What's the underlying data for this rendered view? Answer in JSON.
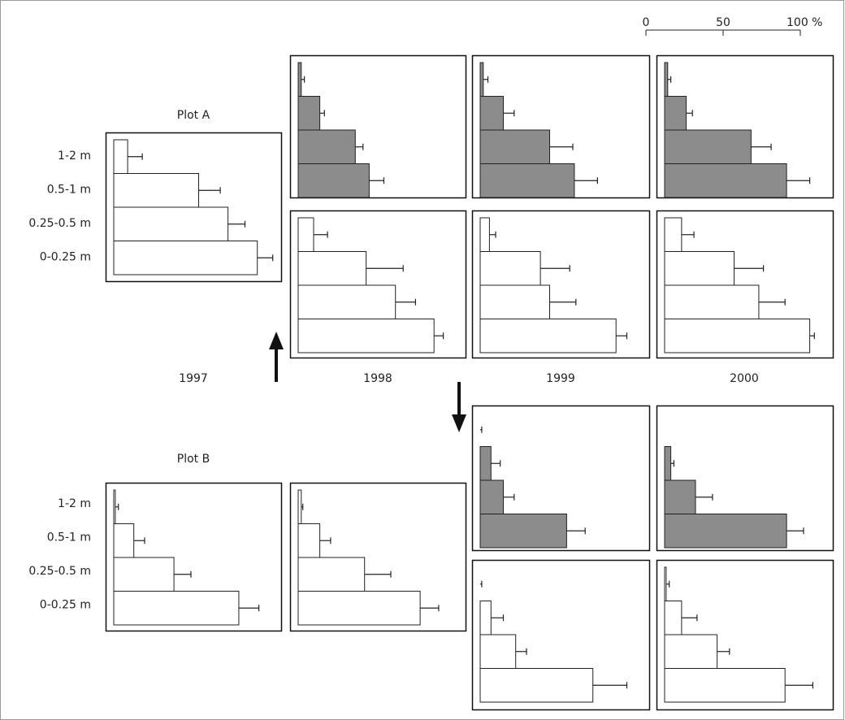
{
  "scale": {
    "xlim": [
      0,
      100
    ],
    "xticks": [
      0,
      50,
      {
        "value": 100,
        "label": "100 %"
      }
    ]
  },
  "categories": [
    "1-2 m",
    "0.5-1 m",
    "0.25-0.5 m",
    "0-0.25 m"
  ],
  "plots": [
    "Plot A",
    "Plot B"
  ],
  "years": [
    "1997",
    "1998",
    "1999",
    "2000"
  ],
  "chart_data": [
    {
      "type": "bar",
      "color": "#ffffff",
      "values": [
        9,
        55,
        74,
        93
      ],
      "errors": [
        9.5,
        14,
        11,
        10
      ]
    },
    {
      "type": "bar",
      "color": "#8c8c8c",
      "values": [
        2,
        14,
        37,
        46
      ],
      "errors": [
        2,
        3,
        5,
        9.5
      ]
    },
    {
      "type": "bar",
      "color": "#ffffff",
      "values": [
        10,
        44,
        63,
        88
      ],
      "errors": [
        9,
        24,
        13,
        6
      ]
    },
    {
      "type": "bar",
      "color": "#8c8c8c",
      "values": [
        2,
        15,
        45,
        61
      ],
      "errors": [
        3,
        7,
        15,
        15
      ]
    },
    {
      "type": "bar",
      "color": "#ffffff",
      "values": [
        6,
        39,
        45,
        88
      ],
      "errors": [
        4,
        19,
        17,
        7
      ]
    },
    {
      "type": "bar",
      "color": "#8c8c8c",
      "values": [
        2,
        14,
        56,
        79
      ],
      "errors": [
        2,
        4,
        13,
        15
      ]
    },
    {
      "type": "bar",
      "color": "#ffffff",
      "values": [
        11,
        45,
        61,
        94
      ],
      "errors": [
        8,
        19,
        17,
        3
      ]
    },
    {
      "type": "bar",
      "color": "#ffffff",
      "values": [
        1,
        13,
        39,
        81
      ],
      "errors": [
        2,
        7,
        11,
        13
      ]
    },
    {
      "type": "bar",
      "color": "#ffffff",
      "values": [
        2,
        14,
        43,
        79
      ],
      "errors": [
        1,
        7,
        17,
        12
      ]
    },
    {
      "type": "bar",
      "color": "#8c8c8c",
      "values": [
        0,
        7,
        15,
        56
      ],
      "errors": [
        1,
        6,
        7,
        12
      ]
    },
    {
      "type": "bar",
      "color": "#ffffff",
      "values": [
        0,
        7,
        23,
        73
      ],
      "errors": [
        1,
        8,
        7,
        22
      ]
    },
    {
      "type": "bar",
      "color": "#8c8c8c",
      "values": [
        null,
        4,
        20,
        79
      ],
      "errors": [
        null,
        2,
        11,
        11
      ]
    },
    {
      "type": "bar",
      "color": "#ffffff",
      "values": [
        1,
        11,
        34,
        78
      ],
      "errors": [
        2,
        10,
        8,
        18
      ]
    }
  ]
}
